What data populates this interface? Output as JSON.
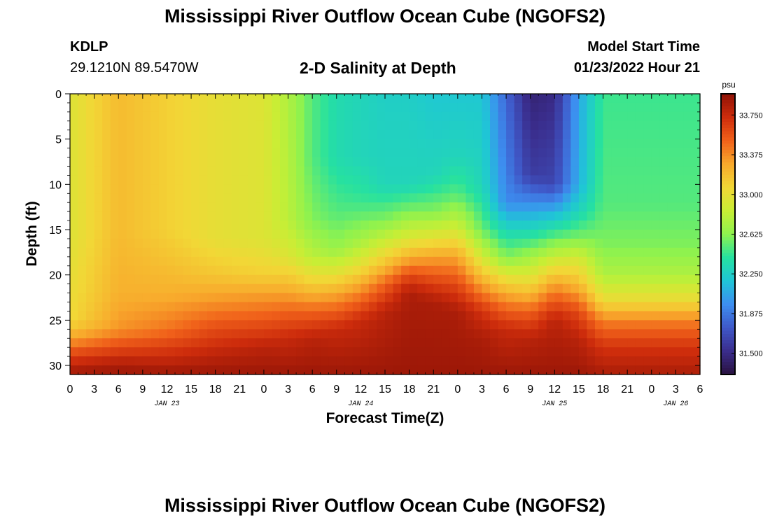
{
  "header": {
    "title": "Mississippi River Outflow Ocean Cube (NGOFS2)",
    "station_id": "KDLP",
    "station_coords": "29.1210N  89.5470W",
    "subtitle": "2-D Salinity at Depth",
    "model_start_label": "Model Start Time",
    "model_start_time": "01/23/2022 Hour 21"
  },
  "footer": {
    "title": "Mississippi River Outflow Ocean Cube (NGOFS2)"
  },
  "chart_data": {
    "type": "heatmap",
    "variable": "Salinity",
    "xlabel": "Forecast Time(Z)",
    "ylabel": "Depth (ft)",
    "x_tick_labels": [
      "0",
      "3",
      "6",
      "9",
      "12",
      "15",
      "18",
      "21",
      "0",
      "3",
      "6",
      "9",
      "12",
      "15",
      "18",
      "21",
      "0",
      "3",
      "6",
      "9",
      "12",
      "15",
      "18",
      "21",
      "0",
      "3",
      "6"
    ],
    "x_range_hours": [
      0,
      78
    ],
    "date_labels": [
      {
        "label": "JAN 23",
        "hour": 12
      },
      {
        "label": "JAN 24",
        "hour": 36
      },
      {
        "label": "JAN 25",
        "hour": 60
      },
      {
        "label": "JAN 26",
        "hour": 75
      }
    ],
    "y_ticks": [
      0,
      5,
      10,
      15,
      20,
      25,
      30
    ],
    "y_range": [
      0,
      31
    ],
    "y_inverted": true,
    "colorbar": {
      "unit": "psu",
      "tick_labels": [
        "33.750",
        "33.375",
        "33.000",
        "32.625",
        "32.250",
        "31.875",
        "31.500"
      ],
      "range": [
        31.3,
        33.95
      ],
      "colors": [
        "#2a1240",
        "#3a2d8c",
        "#3f58c8",
        "#3d8ef0",
        "#1fc6d6",
        "#26e1a0",
        "#8ff24e",
        "#c8ee35",
        "#f2d736",
        "#f8a92c",
        "#f0601a",
        "#cd2c0c",
        "#8f1206"
      ]
    },
    "profiles": [
      {
        "hour": 0,
        "values": {
          "0": 32.95,
          "15": 32.95,
          "25": 33.05,
          "27": 33.3,
          "29": 33.65,
          "31": 33.9
        }
      },
      {
        "hour": 6,
        "values": {
          "0": 33.2,
          "15": 33.2,
          "22": 33.25,
          "26": 33.35,
          "28": 33.6,
          "30": 33.85,
          "31": 33.9
        }
      },
      {
        "hour": 12,
        "values": {
          "0": 33.1,
          "15": 33.1,
          "22": 33.25,
          "26": 33.45,
          "28": 33.65,
          "31": 33.9
        }
      },
      {
        "hour": 18,
        "values": {
          "0": 33.0,
          "16": 33.0,
          "20": 33.15,
          "23": 33.35,
          "26": 33.6,
          "29": 33.8,
          "31": 33.9
        }
      },
      {
        "hour": 24,
        "values": {
          "0": 32.95,
          "16": 32.95,
          "20": 33.1,
          "22": 33.3,
          "25": 33.55,
          "28": 33.8,
          "31": 33.9
        }
      },
      {
        "hour": 27,
        "values": {
          "0": 32.75,
          "14": 32.8,
          "18": 32.95,
          "21": 33.2,
          "24": 33.5,
          "27": 33.75,
          "31": 33.9
        }
      },
      {
        "hour": 30,
        "values": {
          "0": 32.5,
          "7": 32.5,
          "14": 32.6,
          "18": 32.8,
          "21": 33.1,
          "24": 33.5,
          "27": 33.8,
          "31": 33.9
        }
      },
      {
        "hour": 33,
        "values": {
          "0": 32.35,
          "7": 32.35,
          "13": 32.5,
          "17": 32.65,
          "20": 33.0,
          "23": 33.4,
          "26": 33.75,
          "31": 33.9
        }
      },
      {
        "hour": 36,
        "values": {
          "0": 32.3,
          "7": 32.3,
          "12": 32.45,
          "16": 32.7,
          "19": 33.0,
          "22": 33.4,
          "25": 33.75,
          "31": 33.9
        }
      },
      {
        "hour": 39,
        "values": {
          "0": 32.25,
          "10": 32.3,
          "14": 32.6,
          "17": 32.95,
          "19": 33.2,
          "21": 33.5,
          "24": 33.8,
          "31": 33.9
        }
      },
      {
        "hour": 42,
        "values": {
          "0": 32.25,
          "10": 32.3,
          "13": 32.6,
          "16": 32.95,
          "18": 33.25,
          "20": 33.6,
          "22": 33.85,
          "31": 33.9
        }
      },
      {
        "hour": 45,
        "values": {
          "0": 32.2,
          "9": 32.3,
          "13": 32.6,
          "16": 33.0,
          "18": 33.3,
          "21": 33.65,
          "23": 33.85,
          "31": 33.9
        }
      },
      {
        "hour": 48,
        "values": {
          "0": 32.2,
          "7": 32.3,
          "11": 32.5,
          "15": 32.9,
          "18": 33.3,
          "21": 33.6,
          "24": 33.85,
          "31": 33.9
        }
      },
      {
        "hour": 51,
        "values": {
          "0": 32.2,
          "10": 32.3,
          "15": 32.55,
          "18": 32.9,
          "21": 33.3,
          "24": 33.7,
          "27": 33.85,
          "31": 33.9
        }
      },
      {
        "hour": 54,
        "values": {
          "0": 31.8,
          "12": 31.95,
          "15": 32.3,
          "18": 32.6,
          "20": 32.95,
          "23": 33.4,
          "26": 33.75,
          "31": 33.9
        }
      },
      {
        "hour": 57,
        "values": {
          "0": 31.45,
          "9": 31.6,
          "12": 31.95,
          "15": 32.3,
          "18": 32.7,
          "21": 33.05,
          "24": 33.5,
          "27": 33.8,
          "31": 33.9
        }
      },
      {
        "hour": 60,
        "values": {
          "0": 31.5,
          "10": 31.65,
          "13": 32.1,
          "17": 32.7,
          "19": 33.0,
          "22": 33.45,
          "25": 33.8,
          "31": 33.9
        }
      },
      {
        "hour": 63,
        "values": {
          "0": 32.05,
          "10": 32.1,
          "13": 32.3,
          "16": 32.6,
          "18": 32.9,
          "21": 33.2,
          "24": 33.6,
          "27": 33.8,
          "31": 33.9
        }
      },
      {
        "hour": 66,
        "values": {
          "0": 32.45,
          "12": 32.5,
          "17": 32.6,
          "20": 32.75,
          "23": 33.05,
          "25": 33.4,
          "28": 33.7,
          "31": 33.85
        }
      }
    ]
  }
}
